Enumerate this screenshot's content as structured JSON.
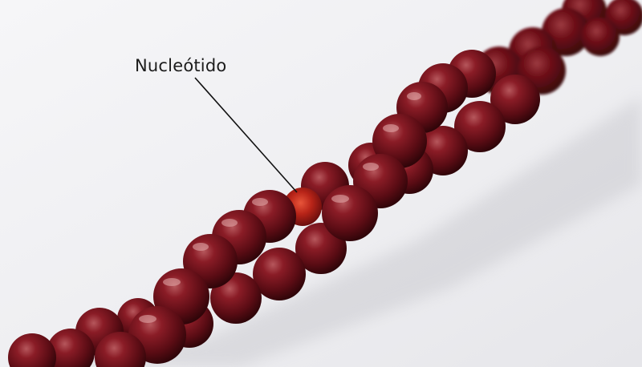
{
  "annotation": {
    "label": "Nucleótido"
  },
  "colors": {
    "background_light": "#f7f7f9",
    "background_shadow": "#d9d9de",
    "bead_dark": "#3d070c",
    "bead_mid": "#7a121b",
    "bead_highlight": "#c4676b",
    "bead_translucent": "#c0281c",
    "pointer_line": "#111111"
  },
  "icons": {
    "bead": "circle-bead"
  }
}
